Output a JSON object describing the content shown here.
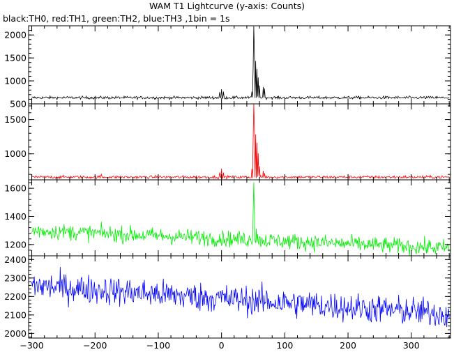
{
  "chart_data": {
    "type": "line",
    "title": "WAM T1 Lightcurve (y-axis: Counts)",
    "subtitle": "black:TH0, red:TH1, green:TH2, blue:TH3 ,1bin = 1s",
    "xlim": [
      -305,
      362
    ],
    "x_ticks": [
      -300,
      -200,
      -100,
      0,
      100,
      200,
      300
    ],
    "x_tick_labels": [
      "−300",
      "−200",
      "−100",
      "0",
      "100",
      "200",
      "300"
    ],
    "grid": false,
    "colors": {
      "TH0": "#000000",
      "TH1": "#ff0000",
      "TH2": "#00ee00",
      "TH3": "#0000ff"
    },
    "panels": [
      {
        "channel": "TH0",
        "ylim": [
          500,
          2200
        ],
        "y_ticks": [
          500,
          1000,
          1500,
          2000
        ],
        "baseline": 635,
        "noise": 22,
        "features": [
          [
            0,
            820
          ],
          [
            -3,
            760
          ],
          [
            3,
            770
          ],
          [
            48,
            760
          ],
          [
            50,
            1300
          ],
          [
            51,
            2200
          ],
          [
            52,
            1580
          ],
          [
            54,
            1420
          ],
          [
            56,
            1260
          ],
          [
            58,
            1080
          ],
          [
            60,
            900
          ],
          [
            66,
            880
          ],
          [
            68,
            820
          ]
        ]
      },
      {
        "channel": "TH1",
        "ylim": [
          620,
          1730
        ],
        "y_ticks": [
          1000,
          1500
        ],
        "baseline": 660,
        "noise": 15,
        "features": [
          [
            0,
            780
          ],
          [
            -3,
            720
          ],
          [
            3,
            730
          ],
          [
            48,
            780
          ],
          [
            50,
            1220
          ],
          [
            51,
            1730
          ],
          [
            52,
            1380
          ],
          [
            54,
            1280
          ],
          [
            56,
            1160
          ],
          [
            58,
            1000
          ],
          [
            60,
            820
          ],
          [
            66,
            750
          ],
          [
            68,
            720
          ],
          [
            -190,
            700
          ]
        ]
      },
      {
        "channel": "TH2",
        "ylim": [
          1120,
          1660
        ],
        "y_ticks": [
          1200,
          1400,
          1600
        ],
        "trend": [
          [
            -300,
            1300
          ],
          [
            360,
            1175
          ]
        ],
        "noise": 40,
        "features": [
          [
            50,
            1450
          ],
          [
            51,
            1660
          ],
          [
            52,
            1400
          ],
          [
            55,
            1320
          ]
        ]
      },
      {
        "channel": "TH3",
        "ylim": [
          1975,
          2420
        ],
        "y_ticks": [
          2000,
          2100,
          2200,
          2300,
          2400
        ],
        "trend": [
          [
            -300,
            2260
          ],
          [
            360,
            2105
          ]
        ],
        "noise": 55,
        "features": []
      }
    ]
  }
}
